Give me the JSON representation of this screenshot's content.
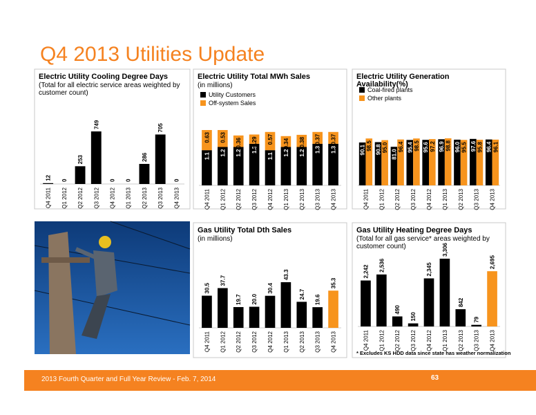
{
  "title": "Q4 2013 Utilities Update",
  "footer": {
    "text": "2013 Fourth Quarter and Full Year Review - Feb. 7, 2014",
    "page": "63"
  },
  "chart_data": [
    {
      "type": "bar",
      "title": "Electric Utility Cooling Degree Days",
      "subtitle": "(Total for all electric service areas weighted by customer count)",
      "categories": [
        "Q4 2011",
        "Q1 2012",
        "Q2 2012",
        "Q3 2012",
        "Q4 2012",
        "Q1 2013",
        "Q2 2013",
        "Q3 2013",
        "Q4 2013"
      ],
      "series": [
        {
          "colors": [
            "#000000",
            "#000000",
            "#000000",
            "#000000",
            "#000000",
            "#000000",
            "#000000",
            "#000000",
            "#000000"
          ],
          "values": [
            12,
            0,
            253,
            749,
            0,
            0,
            286,
            705,
            0
          ]
        }
      ]
    },
    {
      "type": "stacked_bar",
      "title": "Electric Utility Total MWh Sales",
      "subtitle": "(in millions)",
      "categories": [
        "Q4 2011",
        "Q1 2012",
        "Q2 2012",
        "Q3 2012",
        "Q4 2012",
        "Q1 2013",
        "Q2 2013",
        "Q3 2013",
        "Q4 2013"
      ],
      "series": [
        {
          "name": "Utility Customers",
          "color": "#000000",
          "values": [
            1.1,
            1.2,
            1.2,
            1.3,
            1.1,
            1.2,
            1.2,
            1.3,
            1.3
          ]
        },
        {
          "name": "Off-system Sales",
          "color": "#f7941d",
          "values": [
            0.63,
            0.53,
            0.36,
            0.29,
            0.57,
            0.34,
            0.38,
            0.37,
            0.37
          ]
        }
      ]
    },
    {
      "type": "grouped_bar",
      "title": "Electric Utility Generation Availability(%)",
      "categories": [
        "Q4 2011",
        "Q1 2012",
        "Q2 2012",
        "Q3 2012",
        "Q4 2012",
        "Q1 2013",
        "Q2 2013",
        "Q3 2013",
        "Q4 2013"
      ],
      "series": [
        {
          "name": "Coal-fired plants",
          "color": "#000000",
          "values": [
            90.1,
            90.8,
            81,
            95.4,
            95.6,
            96.9,
            96,
            97.6,
            96.4
          ],
          "value_labels": [
            "90.1",
            "90.8",
            "81.0",
            "95.4",
            "95.6",
            "96.9",
            "96.0",
            "97.6",
            "96.4"
          ]
        },
        {
          "name": "Other plants",
          "color": "#f7941d",
          "values": [
            98.5,
            95,
            96.4,
            98.5,
            97.2,
            98.8,
            95.5,
            95.8,
            96.1
          ],
          "value_labels": [
            "98.5",
            "95.0",
            "96.4",
            "98.5",
            "97.2",
            "98.8",
            "95.5",
            "95.8",
            "96.1"
          ]
        }
      ]
    },
    {
      "type": "bar",
      "title": "Gas Utility Total Dth Sales",
      "subtitle": "(in millions)",
      "categories": [
        "Q4 2011",
        "Q1 2012",
        "Q2 2012",
        "Q3 2012",
        "Q4 2012",
        "Q1 2013",
        "Q2 2013",
        "Q3 2013",
        "Q4 2013"
      ],
      "series": [
        {
          "colors": [
            "#000000",
            "#000000",
            "#000000",
            "#000000",
            "#000000",
            "#000000",
            "#000000",
            "#000000",
            "#f7941d"
          ],
          "values": [
            30.5,
            37.7,
            19.7,
            20,
            30.4,
            43.3,
            24.7,
            19.6,
            35.3
          ],
          "value_labels": [
            "30.5",
            "37.7",
            "19.7",
            "20.0",
            "30.4",
            "43.3",
            "24.7",
            "19.6",
            "35.3"
          ]
        }
      ]
    },
    {
      "type": "bar",
      "title": "Gas Utility Heating Degree Days",
      "subtitle": "(Total for all gas service* areas weighted by customer count)",
      "note": "* Excludes KS HDD data since state has weather normalization",
      "categories": [
        "Q4 2011",
        "Q1 2012",
        "Q2 2012",
        "Q3 2012",
        "Q4 2012",
        "Q1 2013",
        "Q2 2013",
        "Q3 2013",
        "Q4 2013"
      ],
      "series": [
        {
          "colors": [
            "#000000",
            "#000000",
            "#000000",
            "#000000",
            "#000000",
            "#000000",
            "#000000",
            "#000000",
            "#f7941d"
          ],
          "values": [
            2242,
            2536,
            490,
            150,
            2345,
            3306,
            842,
            79,
            2695
          ],
          "value_labels": [
            "2,242",
            "2,536",
            "490",
            "150",
            "2,345",
            "3,306",
            "842",
            "79",
            "2,695"
          ]
        }
      ]
    }
  ]
}
